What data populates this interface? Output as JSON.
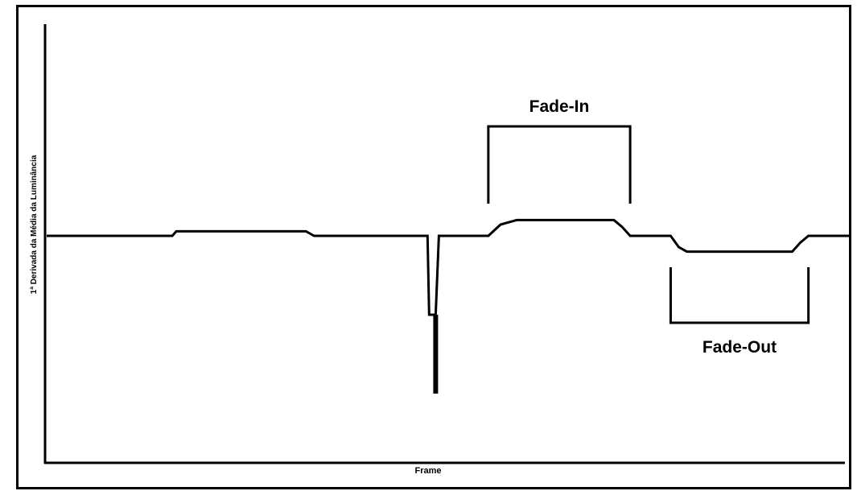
{
  "chart_data": {
    "type": "line",
    "xlabel": "Frame",
    "ylabel": "1ª Derivada da Média da Luminância",
    "ylim": [
      -1,
      1
    ],
    "grid": false,
    "legend": "none",
    "series": [
      {
        "x": [
          0,
          155,
          160,
          170,
          320,
          330,
          470,
          472,
          476,
          480,
          484,
          486,
          545,
          560,
          580,
          700,
          710,
          720,
          770,
          780,
          790,
          920,
          930,
          940,
          990
        ],
        "y": [
          0,
          0,
          0.02,
          0.02,
          0.02,
          0,
          0,
          -0.35,
          -0.35,
          -0.35,
          0,
          0,
          0,
          0.05,
          0.07,
          0.07,
          0.04,
          0,
          0,
          -0.05,
          -0.07,
          -0.07,
          -0.03,
          0,
          0
        ],
        "sharp_valley": {
          "x": 480,
          "y": -0.7
        }
      }
    ],
    "annotations": [
      {
        "label": "Fade-In",
        "x_start": 545,
        "x_end": 720,
        "side": "above"
      },
      {
        "label": "Fade-Out",
        "x_start": 770,
        "x_end": 940,
        "side": "below"
      }
    ]
  }
}
